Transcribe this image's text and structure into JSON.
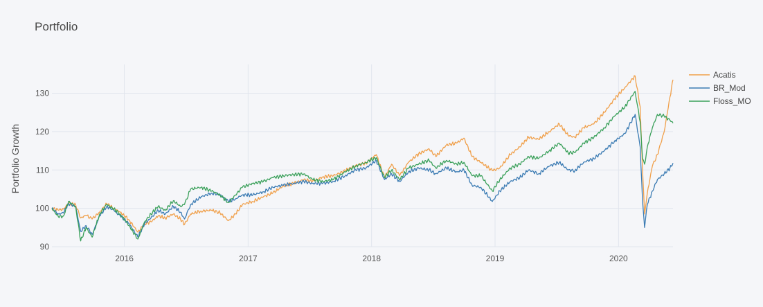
{
  "chart_data": {
    "type": "line",
    "title": "Portfolio",
    "xlabel": "",
    "ylabel": "Portfolio Growth",
    "x_ticks": [
      "2016",
      "2017",
      "2018",
      "2019",
      "2020"
    ],
    "y_ticks": [
      90,
      100,
      110,
      120,
      130
    ],
    "xlim": [
      "2015-06-01",
      "2020-06-10"
    ],
    "ylim": [
      90,
      137.5
    ],
    "grid": true,
    "legend_position": "top-right",
    "colors": {
      "Acatis": "#f0a04b",
      "BR_Mod": "#3b7bb3",
      "Floss_MO": "#3aa05a",
      "background": "#f5f6f9",
      "grid": "#e1e5ed"
    },
    "series": [
      {
        "name": "Acatis",
        "points": [
          [
            "2015-06-01",
            100
          ],
          [
            "2015-06-20",
            99.5
          ],
          [
            "2015-07-05",
            99.8
          ],
          [
            "2015-07-20",
            101.3
          ],
          [
            "2015-08-10",
            101
          ],
          [
            "2015-08-25",
            97.5
          ],
          [
            "2015-09-10",
            98.2
          ],
          [
            "2015-09-28",
            97.2
          ],
          [
            "2015-10-20",
            99
          ],
          [
            "2015-11-10",
            101.2
          ],
          [
            "2015-12-01",
            100
          ],
          [
            "2015-12-20",
            99
          ],
          [
            "2016-01-15",
            97
          ],
          [
            "2016-02-10",
            93.8
          ],
          [
            "2016-03-01",
            96
          ],
          [
            "2016-03-20",
            96.5
          ],
          [
            "2016-04-10",
            98
          ],
          [
            "2016-05-01",
            97.5
          ],
          [
            "2016-05-25",
            98.5
          ],
          [
            "2016-06-15",
            97.2
          ],
          [
            "2016-06-27",
            95.8
          ],
          [
            "2016-07-15",
            98.5
          ],
          [
            "2016-08-15",
            99.3
          ],
          [
            "2016-09-15",
            99.5
          ],
          [
            "2016-10-10",
            98.8
          ],
          [
            "2016-11-04",
            96.8
          ],
          [
            "2016-11-25",
            98.5
          ],
          [
            "2016-12-15",
            101
          ],
          [
            "2017-01-15",
            101.8
          ],
          [
            "2017-02-15",
            103
          ],
          [
            "2017-03-15",
            104
          ],
          [
            "2017-04-15",
            105.8
          ],
          [
            "2017-05-15",
            106.5
          ],
          [
            "2017-06-15",
            107.5
          ],
          [
            "2017-07-10",
            107
          ],
          [
            "2017-08-10",
            108.2
          ],
          [
            "2017-09-10",
            108.5
          ],
          [
            "2017-10-15",
            109.8
          ],
          [
            "2017-11-15",
            111.2
          ],
          [
            "2017-12-15",
            111.8
          ],
          [
            "2018-01-15",
            114
          ],
          [
            "2018-02-08",
            108
          ],
          [
            "2018-03-01",
            111.5
          ],
          [
            "2018-03-25",
            108.5
          ],
          [
            "2018-04-20",
            112
          ],
          [
            "2018-05-20",
            114.2
          ],
          [
            "2018-06-20",
            115.5
          ],
          [
            "2018-07-10",
            113.5
          ],
          [
            "2018-08-10",
            116.5
          ],
          [
            "2018-09-10",
            117
          ],
          [
            "2018-10-01",
            118.3
          ],
          [
            "2018-10-25",
            113.5
          ],
          [
            "2018-11-20",
            112
          ],
          [
            "2018-12-24",
            109.8
          ],
          [
            "2019-01-15",
            110.5
          ],
          [
            "2019-02-15",
            114
          ],
          [
            "2019-03-15",
            116
          ],
          [
            "2019-04-10",
            118.5
          ],
          [
            "2019-05-10",
            118
          ],
          [
            "2019-06-10",
            120
          ],
          [
            "2019-07-10",
            122
          ],
          [
            "2019-08-05",
            119
          ],
          [
            "2019-08-25",
            118.5
          ],
          [
            "2019-09-20",
            121
          ],
          [
            "2019-10-20",
            122
          ],
          [
            "2019-11-20",
            125
          ],
          [
            "2019-12-20",
            128.5
          ],
          [
            "2020-01-20",
            131.5
          ],
          [
            "2020-02-19",
            134.5
          ],
          [
            "2020-03-05",
            126.5
          ],
          [
            "2020-03-12",
            110
          ],
          [
            "2020-03-18",
            98.5
          ],
          [
            "2020-03-26",
            104
          ],
          [
            "2020-04-10",
            111
          ],
          [
            "2020-04-25",
            114
          ],
          [
            "2020-05-15",
            120
          ],
          [
            "2020-06-01",
            129
          ],
          [
            "2020-06-10",
            133.5
          ]
        ]
      },
      {
        "name": "BR_Mod",
        "points": [
          [
            "2015-06-01",
            100
          ],
          [
            "2015-06-20",
            98.5
          ],
          [
            "2015-07-05",
            98.8
          ],
          [
            "2015-07-20",
            101.3
          ],
          [
            "2015-08-10",
            100.5
          ],
          [
            "2015-08-25",
            94
          ],
          [
            "2015-09-10",
            95.5
          ],
          [
            "2015-09-28",
            93.2
          ],
          [
            "2015-10-20",
            98
          ],
          [
            "2015-11-10",
            100.5
          ],
          [
            "2015-12-01",
            99.5
          ],
          [
            "2015-12-20",
            98
          ],
          [
            "2016-01-15",
            96
          ],
          [
            "2016-02-10",
            92.5
          ],
          [
            "2016-03-01",
            96
          ],
          [
            "2016-03-20",
            97.5
          ],
          [
            "2016-04-10",
            99.5
          ],
          [
            "2016-05-01",
            98.5
          ],
          [
            "2016-05-25",
            100.5
          ],
          [
            "2016-06-15",
            99
          ],
          [
            "2016-06-27",
            97.2
          ],
          [
            "2016-07-15",
            101
          ],
          [
            "2016-08-15",
            103
          ],
          [
            "2016-09-15",
            104
          ],
          [
            "2016-10-10",
            103.5
          ],
          [
            "2016-11-04",
            101.8
          ],
          [
            "2016-11-25",
            102.5
          ],
          [
            "2016-12-15",
            103.5
          ],
          [
            "2017-01-15",
            103.5
          ],
          [
            "2017-02-15",
            104.3
          ],
          [
            "2017-03-15",
            105.5
          ],
          [
            "2017-04-15",
            106
          ],
          [
            "2017-05-15",
            106.5
          ],
          [
            "2017-06-15",
            107
          ],
          [
            "2017-07-10",
            106.5
          ],
          [
            "2017-08-10",
            106.5
          ],
          [
            "2017-09-10",
            107
          ],
          [
            "2017-10-15",
            108.5
          ],
          [
            "2017-11-15",
            110
          ],
          [
            "2017-12-15",
            110.5
          ],
          [
            "2018-01-15",
            112.5
          ],
          [
            "2018-02-08",
            107.5
          ],
          [
            "2018-03-01",
            109
          ],
          [
            "2018-03-25",
            107
          ],
          [
            "2018-04-20",
            109.5
          ],
          [
            "2018-05-20",
            110.5
          ],
          [
            "2018-06-20",
            110
          ],
          [
            "2018-07-10",
            109
          ],
          [
            "2018-08-10",
            110.5
          ],
          [
            "2018-09-10",
            109.5
          ],
          [
            "2018-10-01",
            110
          ],
          [
            "2018-10-25",
            106
          ],
          [
            "2018-11-20",
            105.5
          ],
          [
            "2018-12-24",
            101.8
          ],
          [
            "2019-01-15",
            104.5
          ],
          [
            "2019-02-15",
            107
          ],
          [
            "2019-03-15",
            108
          ],
          [
            "2019-04-10",
            110
          ],
          [
            "2019-05-10",
            109
          ],
          [
            "2019-06-10",
            111
          ],
          [
            "2019-07-10",
            112
          ],
          [
            "2019-08-05",
            110
          ],
          [
            "2019-08-25",
            109.8
          ],
          [
            "2019-09-20",
            112
          ],
          [
            "2019-10-20",
            113
          ],
          [
            "2019-11-20",
            115
          ],
          [
            "2019-12-20",
            117.5
          ],
          [
            "2020-01-20",
            119.5
          ],
          [
            "2020-02-19",
            124.5
          ],
          [
            "2020-03-05",
            116
          ],
          [
            "2020-03-12",
            102
          ],
          [
            "2020-03-18",
            95
          ],
          [
            "2020-03-26",
            101
          ],
          [
            "2020-04-10",
            104.5
          ],
          [
            "2020-04-25",
            107.5
          ],
          [
            "2020-05-15",
            109
          ],
          [
            "2020-06-01",
            110.5
          ],
          [
            "2020-06-10",
            111.8
          ]
        ]
      },
      {
        "name": "Floss_MO",
        "points": [
          [
            "2015-06-01",
            100
          ],
          [
            "2015-06-20",
            97.8
          ],
          [
            "2015-07-05",
            98
          ],
          [
            "2015-07-20",
            101.8
          ],
          [
            "2015-08-10",
            100.5
          ],
          [
            "2015-08-25",
            91.5
          ],
          [
            "2015-09-10",
            95
          ],
          [
            "2015-09-28",
            92.5
          ],
          [
            "2015-10-20",
            98.5
          ],
          [
            "2015-11-10",
            101
          ],
          [
            "2015-12-01",
            99.8
          ],
          [
            "2015-12-20",
            98.5
          ],
          [
            "2016-01-15",
            95.5
          ],
          [
            "2016-02-10",
            92
          ],
          [
            "2016-03-01",
            96.5
          ],
          [
            "2016-03-20",
            98.5
          ],
          [
            "2016-04-10",
            100.5
          ],
          [
            "2016-05-01",
            99.5
          ],
          [
            "2016-05-25",
            102
          ],
          [
            "2016-06-15",
            100.5
          ],
          [
            "2016-06-27",
            101
          ],
          [
            "2016-07-15",
            105
          ],
          [
            "2016-08-15",
            105.5
          ],
          [
            "2016-09-15",
            104.5
          ],
          [
            "2016-10-10",
            103.5
          ],
          [
            "2016-11-04",
            101.5
          ],
          [
            "2016-11-25",
            103.5
          ],
          [
            "2016-12-15",
            105.5
          ],
          [
            "2017-01-15",
            106.5
          ],
          [
            "2017-02-15",
            107
          ],
          [
            "2017-03-15",
            108
          ],
          [
            "2017-04-15",
            108.5
          ],
          [
            "2017-05-15",
            108.8
          ],
          [
            "2017-06-15",
            109
          ],
          [
            "2017-07-10",
            107.5
          ],
          [
            "2017-08-10",
            107
          ],
          [
            "2017-09-10",
            107.5
          ],
          [
            "2017-10-15",
            109.5
          ],
          [
            "2017-11-15",
            111
          ],
          [
            "2017-12-15",
            112
          ],
          [
            "2018-01-15",
            113.2
          ],
          [
            "2018-02-08",
            108
          ],
          [
            "2018-03-01",
            110
          ],
          [
            "2018-03-25",
            107.5
          ],
          [
            "2018-04-20",
            110.5
          ],
          [
            "2018-05-20",
            111.5
          ],
          [
            "2018-06-20",
            112.5
          ],
          [
            "2018-07-10",
            110.5
          ],
          [
            "2018-08-10",
            112.5
          ],
          [
            "2018-09-10",
            111.5
          ],
          [
            "2018-10-01",
            112
          ],
          [
            "2018-10-25",
            108.5
          ],
          [
            "2018-11-20",
            108.5
          ],
          [
            "2018-12-24",
            104.5
          ],
          [
            "2019-01-15",
            107.5
          ],
          [
            "2019-02-15",
            110.5
          ],
          [
            "2019-03-15",
            111.5
          ],
          [
            "2019-04-10",
            113.5
          ],
          [
            "2019-05-10",
            113
          ],
          [
            "2019-06-10",
            115
          ],
          [
            "2019-07-10",
            117
          ],
          [
            "2019-08-05",
            114.5
          ],
          [
            "2019-08-25",
            114.5
          ],
          [
            "2019-09-20",
            117
          ],
          [
            "2019-10-20",
            118.5
          ],
          [
            "2019-11-20",
            121
          ],
          [
            "2019-12-20",
            124
          ],
          [
            "2020-01-20",
            126.5
          ],
          [
            "2020-02-19",
            130.5
          ],
          [
            "2020-03-05",
            122.5
          ],
          [
            "2020-03-12",
            113
          ],
          [
            "2020-03-18",
            111.5
          ],
          [
            "2020-03-26",
            116
          ],
          [
            "2020-04-10",
            121
          ],
          [
            "2020-04-25",
            124.5
          ],
          [
            "2020-05-15",
            124
          ],
          [
            "2020-06-01",
            123
          ],
          [
            "2020-06-10",
            122.2
          ]
        ]
      }
    ]
  }
}
